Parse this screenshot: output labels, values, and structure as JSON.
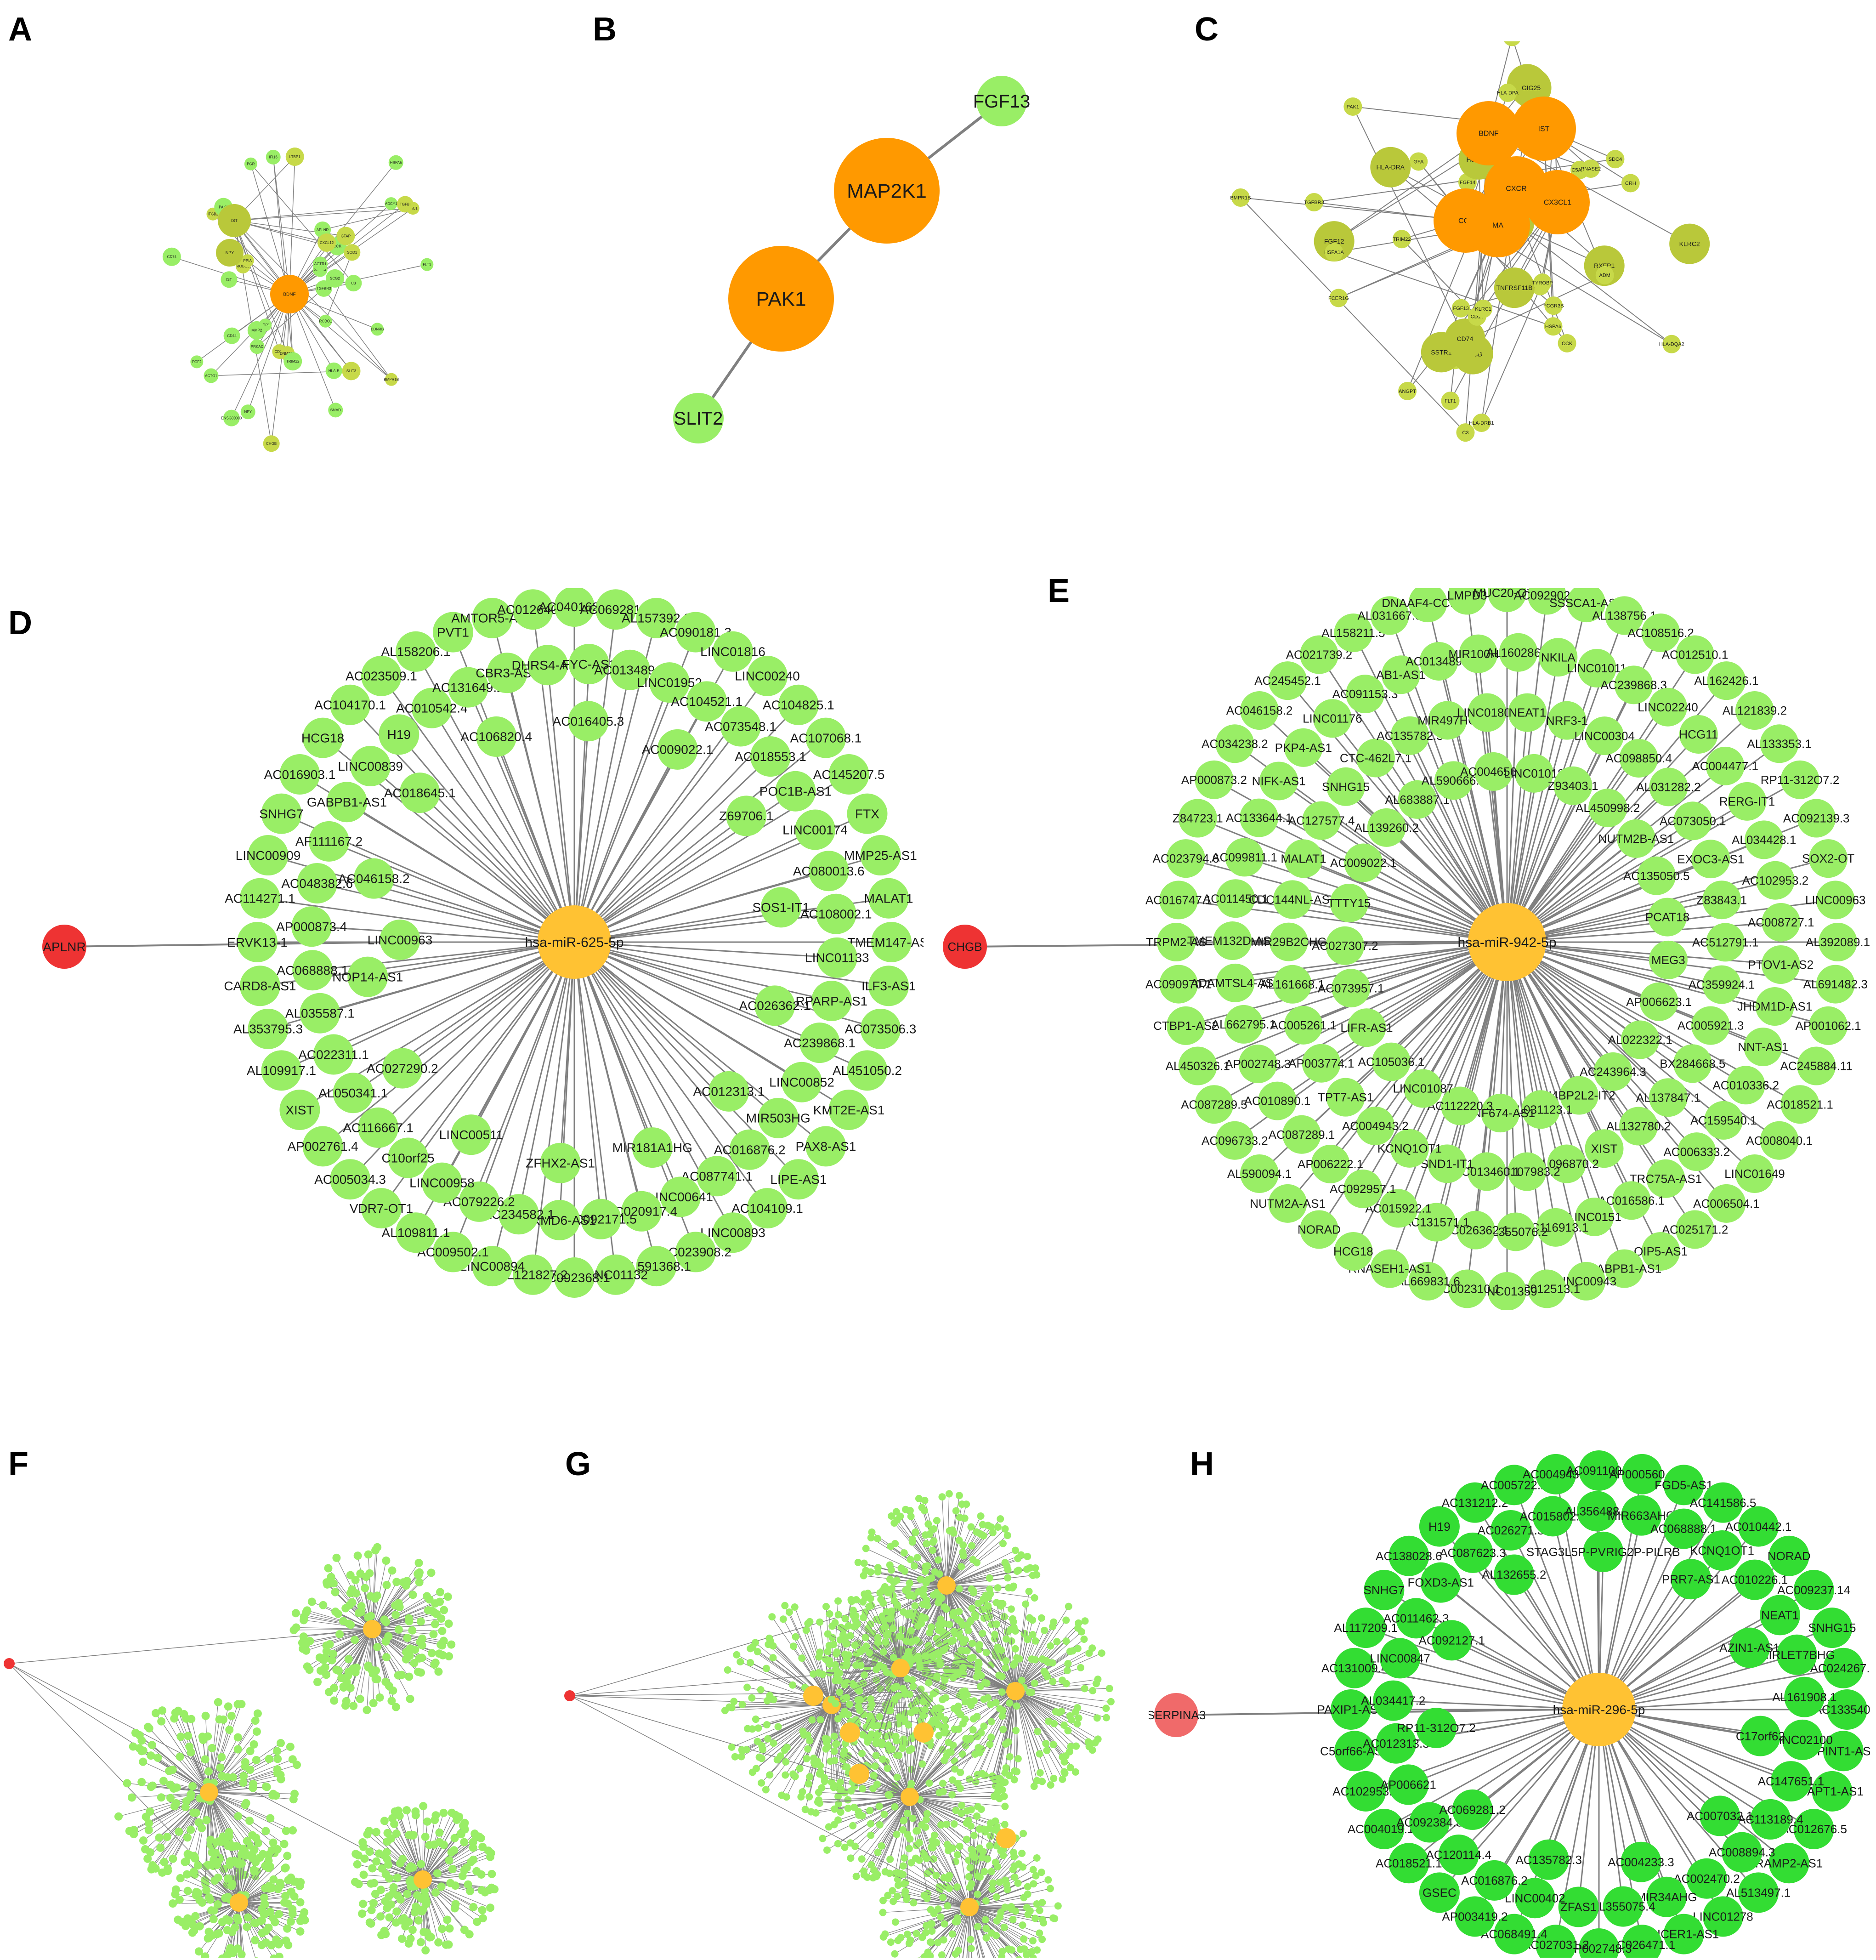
{
  "colors": {
    "green_node": "#99ee66",
    "bright_green_node": "#33dd33",
    "olive_node": "#b9c83a",
    "olive_light": "#c7d949",
    "orange_node": "#ff9900",
    "yellow_hub": "#ffc233",
    "red_node": "#ee3333",
    "pink_node": "#f06a6a",
    "edge": "#808080"
  },
  "panels": {
    "A": {
      "letter": "A",
      "hub": "BDNF",
      "secondary": [
        "IST",
        "NPY"
      ],
      "nodes": [
        "BMPR1B",
        "SSTR3",
        "TGFBR3",
        "LTBP1",
        "ADCY1",
        "PRKAC",
        "CHGB",
        "SCG2",
        "SPP1",
        "CDC4",
        "APLNR",
        "CCK",
        "TAC1",
        "NPY",
        "IST",
        "GFAP",
        "FLT1",
        "AGTR1",
        "TGFBI",
        "MMP2",
        "PGR",
        "DNMT3A",
        "C3",
        "CD74",
        "ITGB2",
        "ACTG1",
        "ENSG00000",
        "SLIT3",
        "EDNRB",
        "SMAD",
        "SOD1",
        "PAK1",
        "ROBO1",
        "ROBO2",
        "HLA-E",
        "TRIM22",
        "PPIA",
        "IFI16",
        "CD44",
        "CXCL12",
        "FGF2",
        "HSPA5"
      ]
    },
    "B": {
      "letter": "B",
      "nodes": [
        "FGF13",
        "MAP2K1",
        "PAK1",
        "SLIT2"
      ]
    },
    "C": {
      "letter": "C",
      "hubs": [
        "BDNF",
        "IST",
        "CXCR",
        "CCL",
        "MA",
        "CX3CL1"
      ],
      "nodes": [
        "FGF12",
        "FGF14",
        "PCSK1",
        "SCG2",
        "CHGB",
        "FLT1",
        "CCK",
        "VIP",
        "RXFP1",
        "GFA",
        "SPP1",
        "TN",
        "PNI",
        "CRH",
        "FGF13",
        "ANGPT1",
        "SSTR1",
        "FGF2",
        "C3",
        "ADM",
        "GIG25",
        "BMPR1B",
        "TGFBR3",
        "ANGPT",
        "TNFRSF11B",
        "SDC4",
        "APLNR",
        "C5AR1",
        "CD74",
        "ITGB2",
        "RNASE2",
        "PAK1",
        "HLA-DMA",
        "HLA-DPA",
        "HSPA1A",
        "FCER1G",
        "FCGR3A",
        "HSPA6",
        "HLA-DRB1",
        "HLA-DQA2",
        "HLA-DRA",
        "TYROBP",
        "CD14",
        "FCGR3B",
        "HSPA1B",
        "TRIM22",
        "GBP2",
        "KLRC1",
        "KLRC2"
      ]
    },
    "D": {
      "letter": "D",
      "source": "APLNR",
      "hub": "hsa-miR-625-5p",
      "bridge": "LINC00963",
      "nodes": [
        "TMEM147-AS1",
        "ILF3-AS1",
        "AC073506.3",
        "AL451050.2",
        "KMT2E-AS1",
        "PAX8-AS1",
        "LIPE-AS1",
        "AC104109.1",
        "LINC00893",
        "AC023908.2",
        "AL591368.1",
        "LINC01132",
        "AC092368.1",
        "AL121827.2",
        "LINC00894",
        "AC009502.1",
        "AL109811.1",
        "VDR7-OT1",
        "AC005034.3",
        "AP002761.4",
        "XIST",
        "AL109917.1",
        "AL353795.3",
        "CARD8-AS1",
        "ERVK13-1",
        "AC114271.1",
        "LINC00909",
        "SNHG7",
        "AC016903.1",
        "HCG18",
        "AC104170.1",
        "AC023509.1",
        "AL158206.1",
        "PVT1",
        "AMTOR5-AS1",
        "AC012640.2",
        "AC040162.3",
        "AC069281.2",
        "AL157392.3",
        "AC090181.3",
        "LINC01816",
        "LINC00240",
        "AC104825.1",
        "AC107068.1",
        "AC145207.5",
        "FTX",
        "MMP25-AS1",
        "MALAT1",
        "AC239868.1",
        "LINC00852",
        "MIR503HG",
        "AC016876.2",
        "AC087741.1",
        "LINC00641",
        "AC020917.4",
        "AC092171.5",
        "FRMD6-AS1",
        "AC234582.1",
        "AC079226.2",
        "LINC00958",
        "C10orf25",
        "AC116667.1",
        "AL050341.1",
        "AC022311.1",
        "AL035587.1",
        "AC068888.1",
        "AP000873.4",
        "AC048382.6",
        "AF111167.2",
        "GABPB1-AS1",
        "LINC00839",
        "H19",
        "AC010542.4",
        "AC131649.2",
        "CBR3-AS1",
        "DHRS4-AS1",
        "FYC-AS1",
        "AC013489.1",
        "LINC01952",
        "AC104521.1",
        "AC073548.1",
        "AC018553.1",
        "POC1B-AS1",
        "LINC00174",
        "AC080013.6",
        "AC108002.1",
        "LINC01133",
        "RPARP-AS1",
        "AC012313.1",
        "MIR181A1HG",
        "ZFHX2-AS1",
        "LINC00511",
        "AC027290.2",
        "NOP14-AS1",
        "AC046158.2",
        "AC018645.1",
        "AC106820.4",
        "AC016405.3",
        "AC009022.1",
        "Z69706.1",
        "SOS1-IT1",
        "AC026362.1"
      ]
    },
    "E": {
      "letter": "E",
      "source": "CHGB",
      "hub": "hsa-miR-942-5p",
      "nodes": [
        "AL392089.1",
        "AL691482.3",
        "AP001062.1",
        "AC245884.11",
        "AC018521.1",
        "AC008040.1",
        "LINC01649",
        "AC006504.1",
        "AC025171.2",
        "OIP5-AS1",
        "GABPB1-AS1",
        "LINC00943",
        "AC012513.1",
        "LINC01359",
        "AC002310.1",
        "AL669831.6",
        "RNASEH1-AS1",
        "HCG18",
        "NORAD",
        "NUTM2A-AS1",
        "AL590094.1",
        "AC096733.2",
        "AC087289.5",
        "AL450326.1",
        "CTBP1-AS2",
        "AC090970.1",
        "TRPM2-AS",
        "AC016747.1",
        "AC023794.6",
        "Z84723.1",
        "AP000873.2",
        "AC034238.2",
        "AC046158.2",
        "AC245452.1",
        "AC021739.2",
        "AL158211.5",
        "AL031667.3",
        "DNAAF4-CCPG1",
        "LMPD3",
        "MUC20-OT1",
        "AC092902.2",
        "SSSCA1-AS1",
        "AL138756.1",
        "AC108516.2",
        "AC012510.1",
        "AL162426.1",
        "AL121839.2",
        "AL133353.1",
        "RP11-312O7.2",
        "AC092139.3",
        "SOX2-OT",
        "LINC00963",
        "NNT-AS1",
        "AC010336.2",
        "AC159540.1",
        "AC006333.2",
        "TRC75A-AS1",
        "AC016586.1",
        "LINC0151",
        "AC116913.1",
        "AL355076.2",
        "AC026362.1",
        "AC131571.1",
        "AC015922.1",
        "AC092957.1",
        "AP006222.1",
        "AC087289.1",
        "AC010890.1",
        "AP002748.3",
        "AL662795.1",
        "ADAMTSL4-AS1",
        "TMEM132D-AS1",
        "AC011450.1",
        "AC099811.1",
        "AC133644.1",
        "NIFK-AS1",
        "PKP4-AS1",
        "LINC01176",
        "AC091153.3",
        "AB1-AS1",
        "AC013489.1",
        "MIR100HG",
        "AL160286.2",
        "NKILA",
        "LINC01011",
        "AC239868.3",
        "LINC02240",
        "HCG11",
        "AC004477.1",
        "RERG-IT1",
        "AL034428.1",
        "AC102953.2",
        "AC008727.1",
        "PTOV1-AS2",
        "JHDM1D-AS1",
        "AL137847.1",
        "AL132780.2",
        "XIST",
        "AL096870.2",
        "AC107983.2",
        "AC013460.1",
        "SND1-IT1",
        "KCNQ1OT1",
        "AC004943.2",
        "TPT7-AS1",
        "AP003774.1",
        "AC005261.1",
        "AL161668.1",
        "MIR29B2CHG",
        "CDC144NL-AS1",
        "MALAT1",
        "AC127577.4",
        "SNHG15",
        "CTC-462L7.1",
        "AC135782.3",
        "MIR497HG",
        "LINC01801",
        "NEAT1",
        "NRF3-1",
        "LINC00304",
        "AC098850.4",
        "AL031282.2",
        "AC073050.1",
        "EXOC3-AS1",
        "Z83843.1",
        "AC512791.1",
        "AC359924.1",
        "AC005921.3",
        "BX284668.5",
        "N4BP2L2-IT2",
        "AL031123.1",
        "ZNF674-AS1",
        "AC112220.3",
        "LINC01087",
        "AC105036.1",
        "LIFR-AS1",
        "AC073957.1",
        "AC027307.2",
        "TTTY15",
        "AC009022.1",
        "AL139260.2",
        "AL683887.1",
        "AL590666.2",
        "AC004656.1",
        "LINC01018",
        "Z93403.1",
        "AL450998.2",
        "NUTM2B-AS1",
        "AC135050.5",
        "PCAT18",
        "MEG3",
        "AP006623.1",
        "AL022322.1",
        "AC243964.3"
      ]
    },
    "F": {
      "letter": "F"
    },
    "G": {
      "letter": "G"
    },
    "H": {
      "letter": "H",
      "source": "SERPINA3",
      "hub": "hsa-miR-296-5p",
      "nodes": [
        "AC133540.1",
        "SPINT1-AS1",
        "TAPT1-AS1",
        "AC012676.5",
        "RAMP2-AS1",
        "AL513497.1",
        "LINC01278",
        "DICER1-AS1",
        "AC026471.1",
        "AP002748.3",
        "AC027031.2",
        "AC068491.4",
        "AP003419.2",
        "GSEC",
        "AC018521.1",
        "AC004019.18",
        "AC102953.2",
        "C5orf66-AS1",
        "PAXIP1-AS1",
        "AC131009.4",
        "AL117209.1",
        "SNHG7",
        "AC138028.6",
        "H19",
        "AC131212.2",
        "AC005722.2",
        "AC004943.2",
        "AC091100.1",
        "AP000560.1",
        "FGD5-AS1",
        "AC141586.5",
        "AC010442.1",
        "NORAD",
        "AC009237.14",
        "SNHG15",
        "AC024267.1",
        "AC147651.1",
        "AC113189.4",
        "AC008894.3",
        "AC002470.2",
        "MIR34AHG",
        "AL355075.4",
        "ZFAS1",
        "LINC00402",
        "AC016876.2",
        "AC120114.4",
        "AC092384.3",
        "AP006621",
        "AC012313.3",
        "AL034417.2",
        "LINC00847",
        "AC011462.3",
        "FOXD3-AS1",
        "AC087623.3",
        "AC026271.3",
        "AC015802.1",
        "AL356488.2",
        "MIR663AHG",
        "AC068888.1",
        "KCNQ1OT1",
        "AC010226.1",
        "NEAT1",
        "MIRLET7BHG",
        "AL161908.1",
        "LINC02100",
        "AC007032.1",
        "AC004233.3",
        "AC135782.3",
        "AC069281.2",
        "RP11-312O7.2",
        "AC092127.1",
        "AL132655.2",
        "STAG3L5P-PVRIG2P-PILRB",
        "PRR7-AS1",
        "AZIN1-AS1",
        "C17orf62"
      ]
    }
  }
}
